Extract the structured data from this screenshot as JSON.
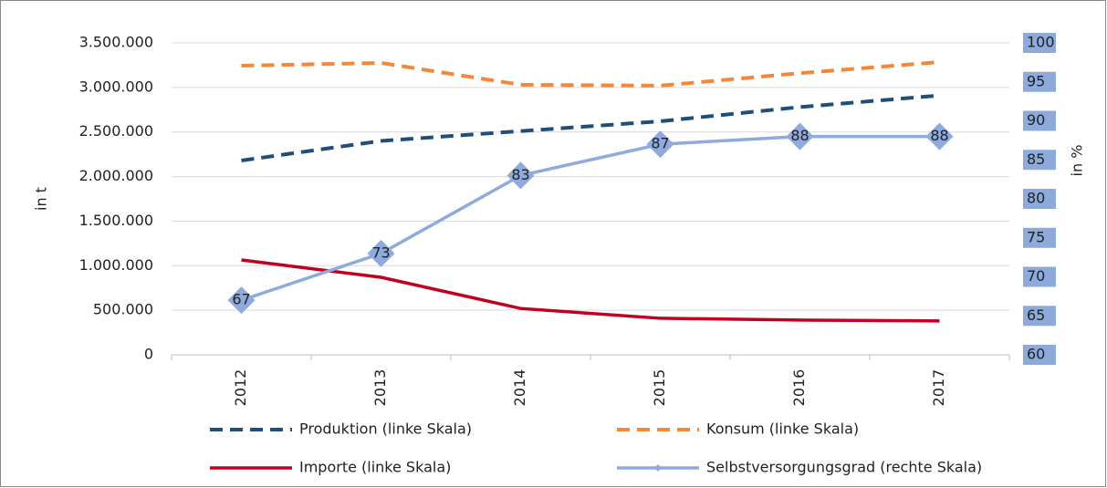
{
  "chart_data": {
    "type": "line",
    "categories": [
      "2012",
      "2013",
      "2014",
      "2015",
      "2016",
      "2017"
    ],
    "series": [
      {
        "name": "Produktion (linke Skala)",
        "color": "#1f4e79",
        "dash": true,
        "values": [
          2180000,
          2400000,
          2510000,
          2620000,
          2780000,
          2910000
        ]
      },
      {
        "name": "Konsum (linke Skala)",
        "color": "#f4883a",
        "dash": true,
        "values": [
          3244000,
          3275000,
          3030000,
          3020000,
          3160000,
          3285000
        ]
      },
      {
        "name": "Importe (linke Skala)",
        "color": "#c00020",
        "dash": false,
        "values": [
          1064000,
          870000,
          520000,
          410000,
          390000,
          380000
        ]
      },
      {
        "name": "Selbstversorgungsgrad (rechte Skala)",
        "color": "#8faadc",
        "dash": false,
        "axis": "y2",
        "markers": true,
        "values": [
          67,
          73,
          83,
          87,
          88,
          88
        ]
      }
    ],
    "ylabel": "in t",
    "y2label": "in %",
    "ylim": [
      0,
      3500000
    ],
    "yticks": [
      0,
      {
        "value": 500000,
        "label": "500.000"
      },
      {
        "value": 1000000,
        "label": "1.000.000"
      },
      {
        "value": 1500000,
        "label": "1.500.000"
      },
      {
        "value": 2000000,
        "label": "2.000.000"
      },
      {
        "value": 2500000,
        "label": "2.500.000"
      },
      {
        "value": 3000000,
        "label": "3.000.000"
      },
      {
        "value": 3500000,
        "label": "3.500.000"
      }
    ],
    "y2lim": [
      60,
      100
    ],
    "y2ticks": [
      60,
      65,
      70,
      75,
      80,
      85,
      90,
      95,
      100
    ],
    "grid": true,
    "legend": "bottom"
  }
}
